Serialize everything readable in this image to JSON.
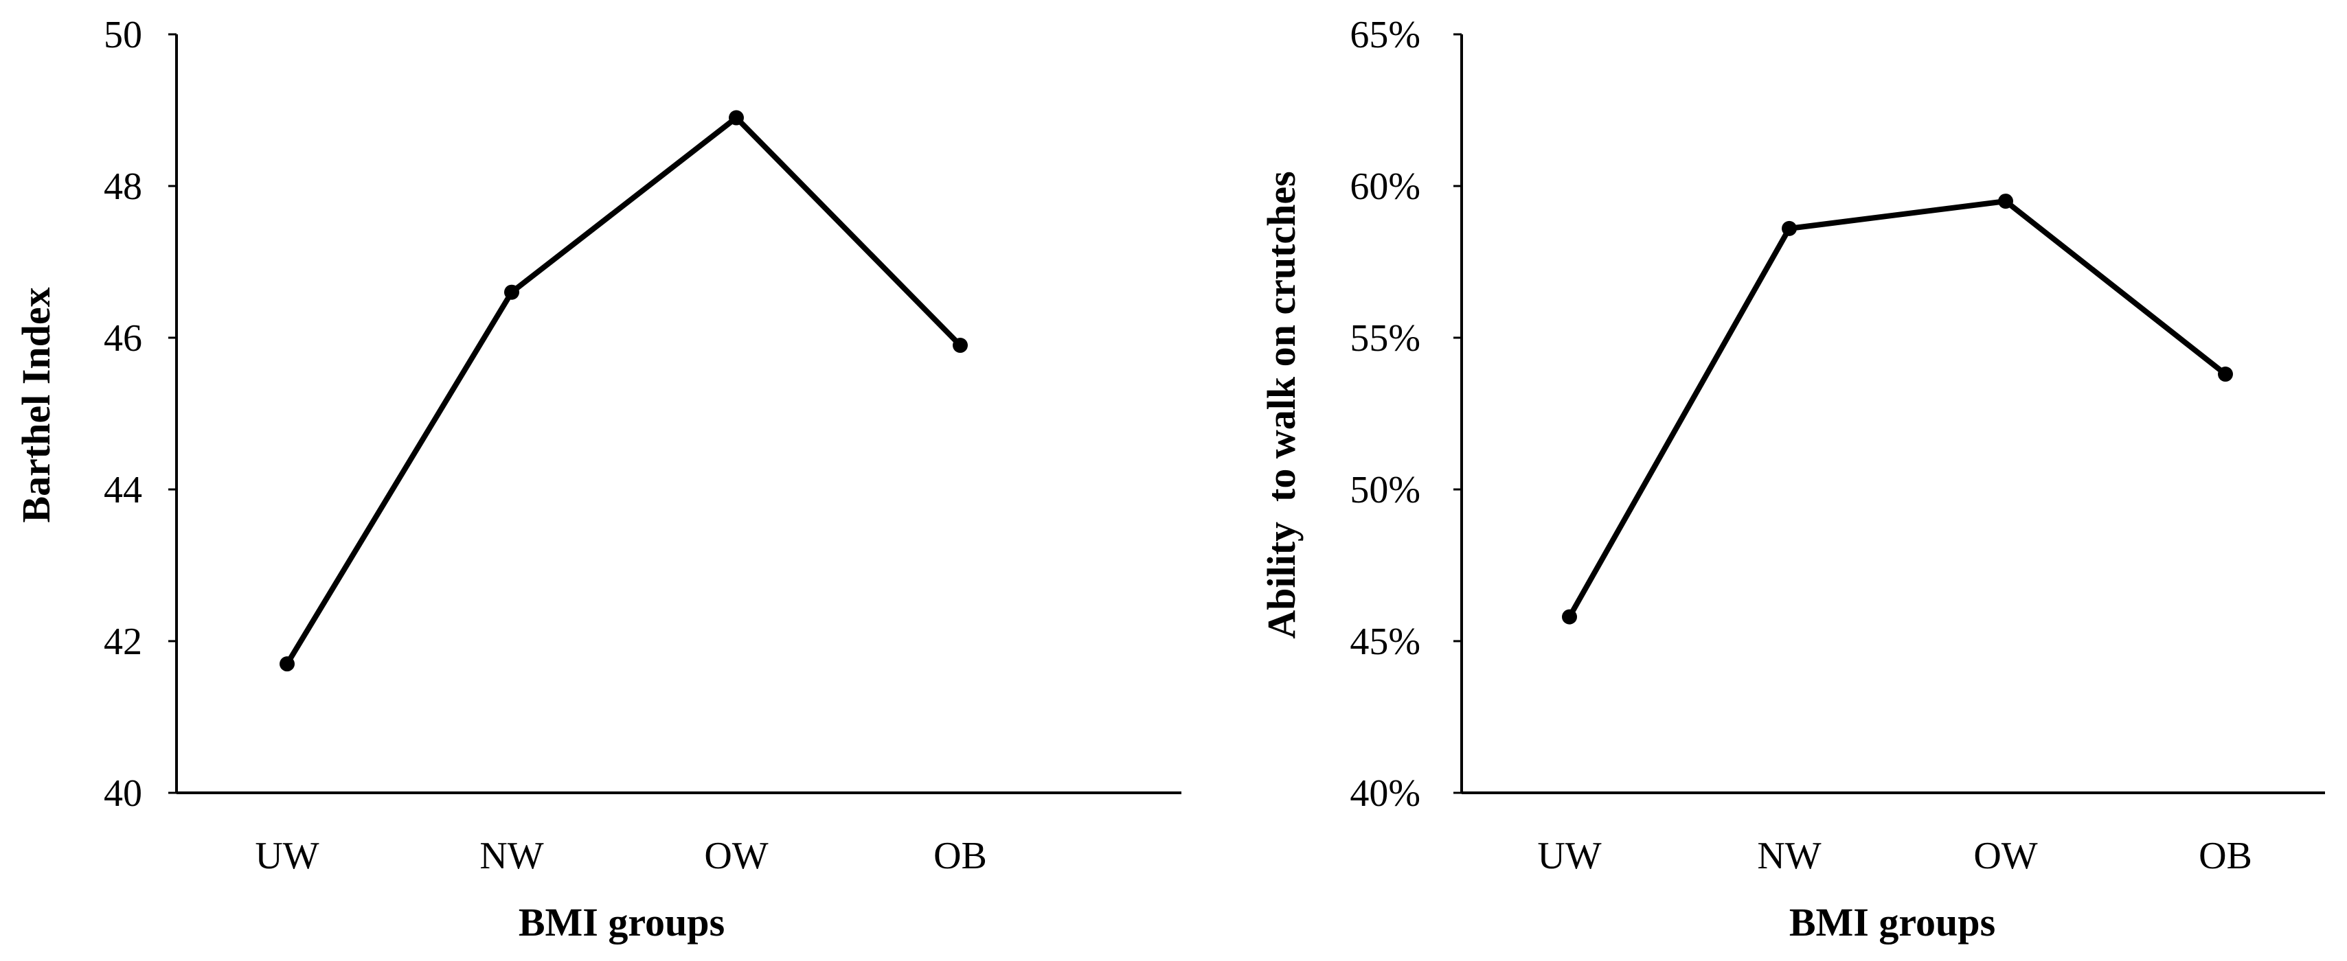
{
  "chart_data": [
    {
      "type": "line",
      "title": "",
      "xlabel": "BMI groups",
      "ylabel": "Barthel Index",
      "categories": [
        "UW",
        "NW",
        "OW",
        "OB"
      ],
      "values": [
        41.7,
        46.6,
        48.9,
        45.9
      ],
      "ylim": [
        40,
        50
      ],
      "yticks": [
        "40",
        "42",
        "44",
        "46",
        "48",
        "50"
      ],
      "grid": false,
      "legend": "none",
      "colors": {
        "line": "#000000",
        "marker": "#000000",
        "axis": "#000000"
      }
    },
    {
      "type": "line",
      "title": "",
      "xlabel": "BMI groups",
      "ylabel": "Ability  to walk on crutches",
      "categories": [
        "UW",
        "NW",
        "OW",
        "OB"
      ],
      "values": [
        0.458,
        0.586,
        0.595,
        0.538
      ],
      "ylim": [
        0.4,
        0.65
      ],
      "yticks": [
        "40%",
        "45%",
        "50%",
        "55%",
        "60%",
        "65%"
      ],
      "grid": false,
      "legend": "none",
      "colors": {
        "line": "#000000",
        "marker": "#000000",
        "axis": "#000000"
      }
    }
  ]
}
